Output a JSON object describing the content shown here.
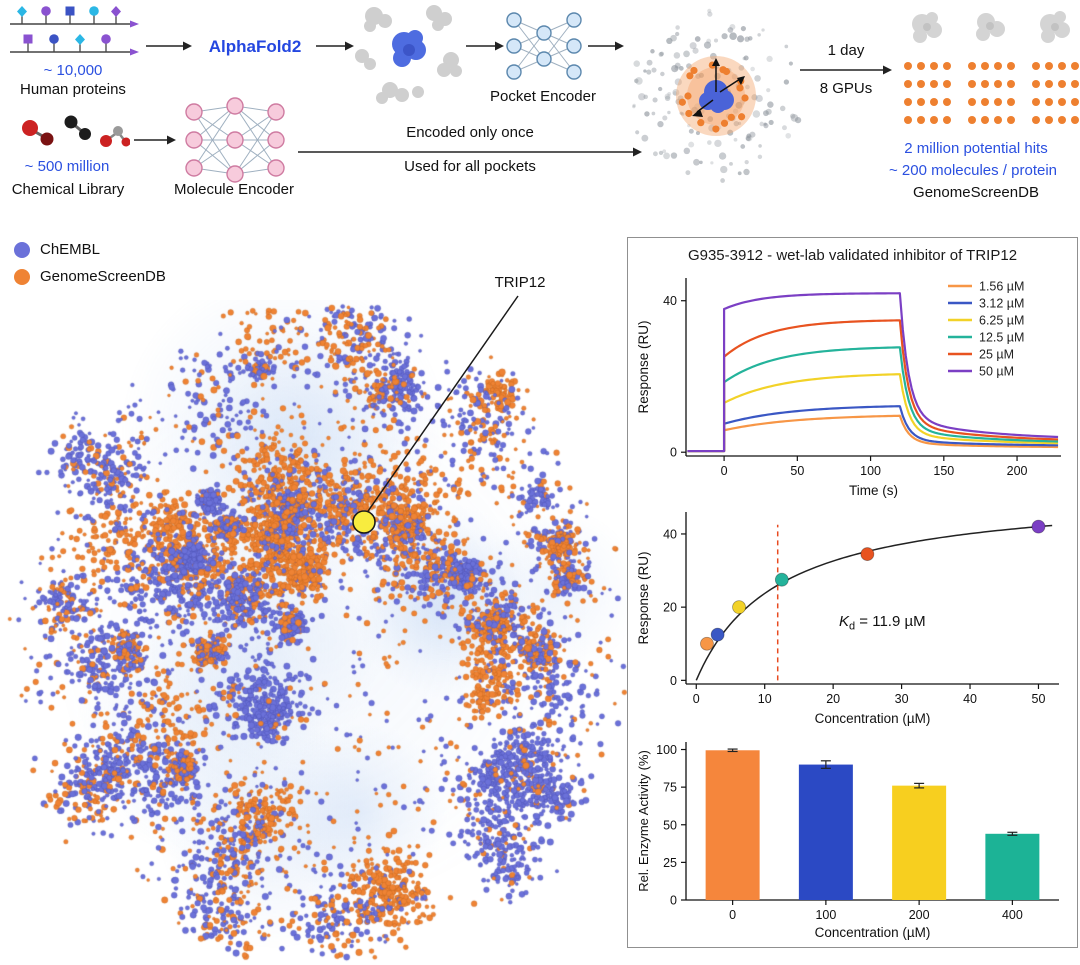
{
  "pipeline": {
    "human_proteins_count": "~ 10,000",
    "human_proteins_label": "Human proteins",
    "alphafold_label": "AlphaFold2",
    "pocket_encoder_label": "Pocket Encoder",
    "chemical_library_count": "~ 500 million",
    "chemical_library_label": "Chemical Library",
    "molecule_encoder_label": "Molecule Encoder",
    "encode_note_line1": "Encoded only once",
    "encode_note_line2": "Used for all pockets",
    "compute_line1": "1 day",
    "compute_line2": "8 GPUs",
    "output_line1": "2 million potential hits",
    "output_line2": "~ 200 molecules / protein",
    "output_line3": "GenomeScreenDB"
  },
  "legend": {
    "items": [
      {
        "label": "ChEMBL",
        "color": "#6b71d9"
      },
      {
        "label": "GenomeScreenDB",
        "color": "#ef8334"
      }
    ]
  },
  "embedding": {
    "highlight_label": "TRIP12"
  },
  "panel": {
    "title": "G935-3912 - wet-lab validated inhibitor of TRIP12"
  },
  "colors": {
    "accent_blue": "#2b50e0",
    "chembl_blue": "#6b71d9",
    "genomescreen_orange": "#ef8334",
    "highlight_yellow": "#f8ec3f",
    "kd_line_red": "#e84a20"
  },
  "chart_data": [
    {
      "id": "embedding",
      "type": "scatter",
      "note": "2D chemical-space embedding (UMAP-style); dense blue/orange clusters over soft blue glow; one highlighted yellow point labeled TRIP12",
      "series": [
        {
          "name": "ChEMBL",
          "color": "#6b71d9"
        },
        {
          "name": "GenomeScreenDB",
          "color": "#ef8334"
        }
      ],
      "highlight": {
        "label": "TRIP12",
        "color": "#f8ec3f"
      }
    },
    {
      "id": "spr",
      "type": "line",
      "xlabel": "Time (s)",
      "ylabel": "Response (RU)",
      "xlim": [
        -26,
        230
      ],
      "ylim": [
        -1,
        46
      ],
      "xticks": [
        0,
        50,
        100,
        150,
        200
      ],
      "yticks": [
        0,
        40
      ],
      "legend_position": "top-right",
      "association_start": 0,
      "dissociation_start": 120,
      "end_time": 228,
      "series": [
        {
          "name": "1.56 µM",
          "color": "#f79646",
          "plateau": 10,
          "jump": 0.58,
          "tau_on": 50,
          "floor": 1.2
        },
        {
          "name": "3.12 µM",
          "color": "#3a57c4",
          "plateau": 12.5,
          "jump": 0.6,
          "tau_on": 45,
          "floor": 1.6
        },
        {
          "name": "6.25 µM",
          "color": "#f2d228",
          "plateau": 21,
          "jump": 0.62,
          "tau_on": 40,
          "floor": 2.0
        },
        {
          "name": "12.5 µM",
          "color": "#24b39b",
          "plateau": 28,
          "jump": 0.66,
          "tau_on": 35,
          "floor": 2.3
        },
        {
          "name": "25 µM",
          "color": "#e85320",
          "plateau": 35,
          "jump": 0.72,
          "tau_on": 30,
          "floor": 2.7
        },
        {
          "name": "50 µM",
          "color": "#7b3fc4",
          "plateau": 42,
          "jump": 0.9,
          "tau_on": 25,
          "floor": 3.2
        }
      ]
    },
    {
      "id": "binding",
      "type": "scatter",
      "xlabel": "Concentration (µM)",
      "ylabel": "Response (RU)",
      "xlim": [
        -1.5,
        53
      ],
      "ylim": [
        -1,
        46
      ],
      "xticks": [
        0,
        10,
        20,
        30,
        40,
        50
      ],
      "yticks": [
        0,
        20,
        40
      ],
      "points": [
        {
          "x": 1.56,
          "y": 10,
          "color": "#f79646"
        },
        {
          "x": 3.12,
          "y": 12.5,
          "color": "#3a57c4"
        },
        {
          "x": 6.25,
          "y": 20,
          "color": "#f2d228"
        },
        {
          "x": 12.5,
          "y": 27.5,
          "color": "#24b39b"
        },
        {
          "x": 25,
          "y": 34.5,
          "color": "#e85320"
        },
        {
          "x": 50,
          "y": 42,
          "color": "#7b3fc4"
        }
      ],
      "fit": {
        "rmax": 52,
        "kd": 11.9
      },
      "kd_line_x": 11.9,
      "annotation": {
        "symbol": "K",
        "sub": "d",
        "rest": " = 11.9 µM"
      }
    },
    {
      "id": "enzyme",
      "type": "bar",
      "xlabel": "Concentration (µM)",
      "ylabel": "Rel. Enzyme Activity (%)",
      "categories": [
        "0",
        "100",
        "200",
        "400"
      ],
      "values": [
        99.5,
        90,
        76,
        44
      ],
      "errors": [
        0.8,
        2.5,
        1.5,
        1.0
      ],
      "colors": [
        "#f5863c",
        "#2b49c4",
        "#f7cf1f",
        "#1cb396"
      ],
      "yticks": [
        0,
        25,
        50,
        75,
        100
      ],
      "ylim": [
        0,
        105
      ]
    }
  ]
}
